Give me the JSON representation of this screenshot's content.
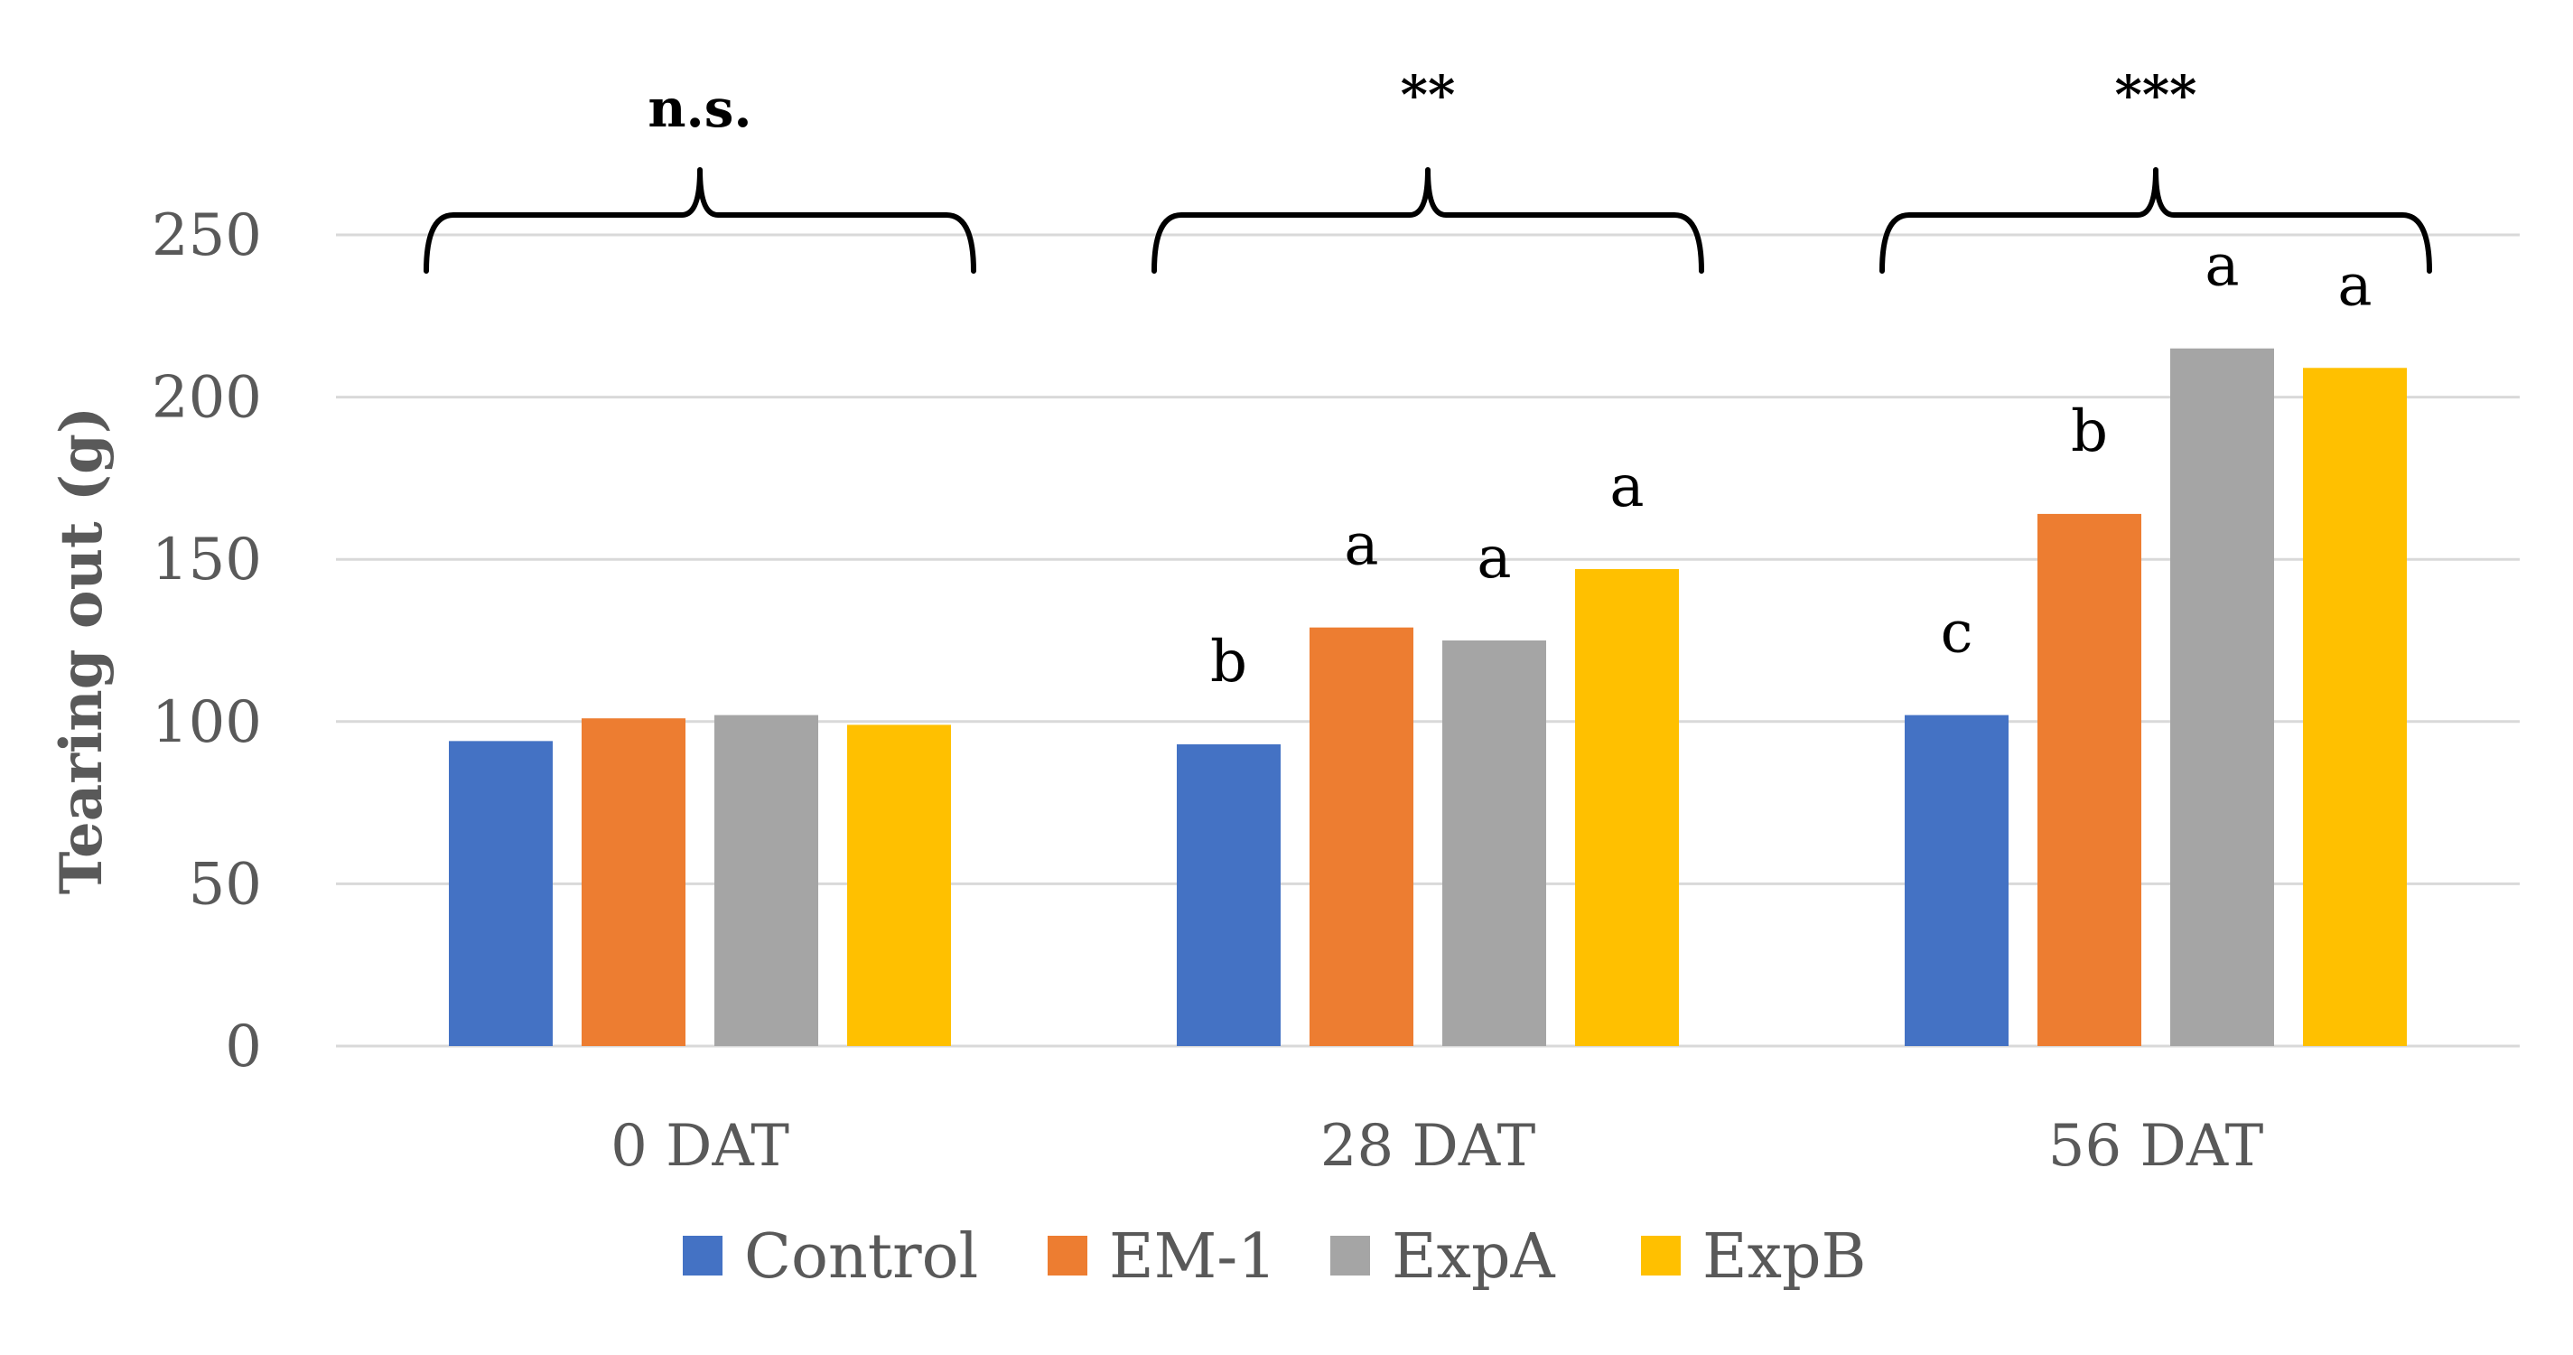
{
  "chart_data": {
    "type": "bar",
    "title": "",
    "xlabel": "",
    "ylabel": "Tearing out (g)",
    "ylim": [
      0,
      250
    ],
    "yticks": [
      "0",
      "50",
      "100",
      "150",
      "200",
      "250"
    ],
    "grid": true,
    "legend_position": "bottom",
    "categories": [
      "0 DAT",
      "28 DAT",
      "56 DAT"
    ],
    "series": [
      {
        "name": "Control",
        "color": "#4472C4",
        "values": [
          94,
          93,
          102
        ]
      },
      {
        "name": "EM-1",
        "color": "#ED7D31",
        "values": [
          101,
          129,
          164
        ]
      },
      {
        "name": "ExpA",
        "color": "#A5A5A5",
        "values": [
          102,
          125,
          215
        ]
      },
      {
        "name": "ExpB",
        "color": "#FFC000",
        "values": [
          99,
          147,
          209
        ]
      }
    ],
    "letters": [
      [
        "",
        "",
        "",
        ""
      ],
      [
        "b",
        "a",
        "a",
        "a"
      ],
      [
        "c",
        "b",
        "a",
        "a"
      ]
    ],
    "significance": [
      "n.s.",
      "**",
      "***"
    ]
  }
}
